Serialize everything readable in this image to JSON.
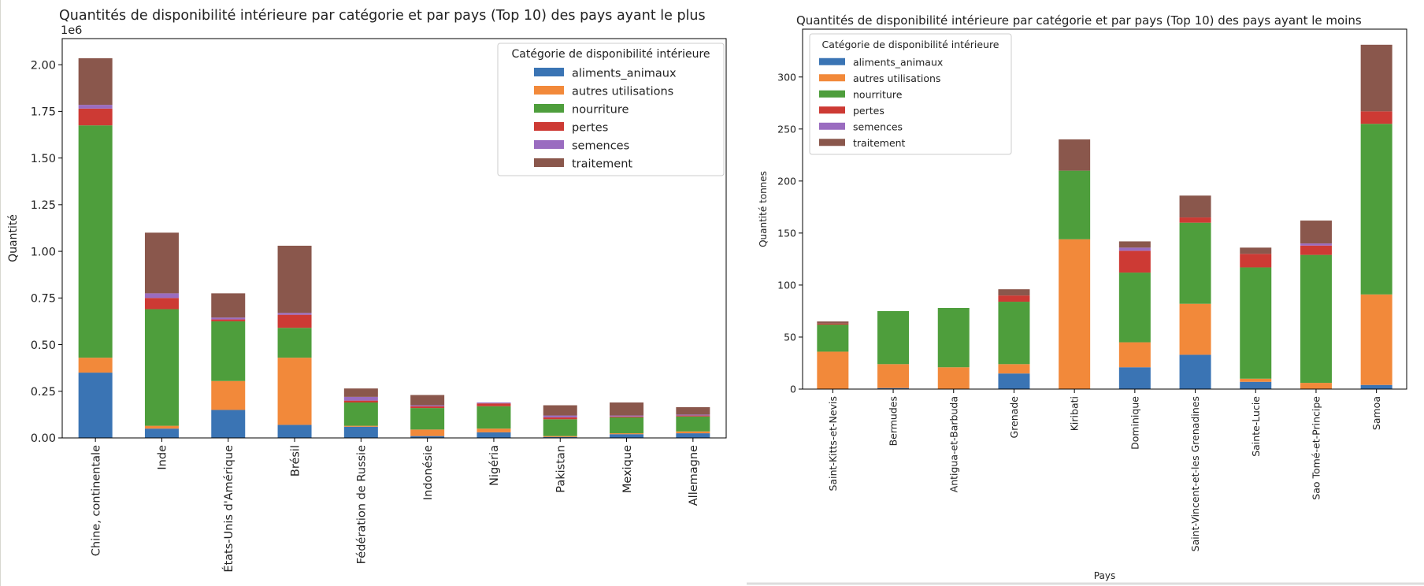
{
  "chart_data": [
    {
      "type": "bar",
      "stacked": true,
      "title": "Quantités de disponibilité intérieure par catégorie et par pays (Top 10) des pays ayant le plus",
      "xlabel": "",
      "ylabel": "Quantité",
      "y_offset_label": "1e6",
      "ylim": [
        0,
        2.14
      ],
      "y_ticks": [
        0.0,
        0.25,
        0.5,
        0.75,
        1.0,
        1.25,
        1.5,
        1.75,
        2.0
      ],
      "y_tick_labels": [
        "0.00",
        "0.25",
        "0.50",
        "0.75",
        "1.00",
        "1.25",
        "1.50",
        "1.75",
        "2.00"
      ],
      "grid": false,
      "legend": {
        "title": "Catégorie de disponibilité intérieure",
        "placement": "upper-right"
      },
      "categories": [
        "Chine, continentale",
        "Inde",
        "États-Unis d'Amérique",
        "Brésil",
        "Fédération de Russie",
        "Indonésie",
        "Nigéria",
        "Pakistan",
        "Mexique",
        "Allemagne"
      ],
      "series": [
        {
          "name": "aliments_animaux",
          "color": "#3a74b4",
          "values": [
            0.35,
            0.05,
            0.15,
            0.07,
            0.06,
            0.01,
            0.03,
            0.005,
            0.02,
            0.025
          ]
        },
        {
          "name": "autres utilisations",
          "color": "#f2893a",
          "values": [
            0.08,
            0.015,
            0.155,
            0.36,
            0.005,
            0.035,
            0.02,
            0.005,
            0.005,
            0.01
          ]
        },
        {
          "name": "nourriture",
          "color": "#4e9e3c",
          "values": [
            1.245,
            0.625,
            0.32,
            0.16,
            0.125,
            0.115,
            0.12,
            0.09,
            0.085,
            0.08
          ]
        },
        {
          "name": "pertes",
          "color": "#cd3a34",
          "values": [
            0.09,
            0.06,
            0.01,
            0.07,
            0.01,
            0.01,
            0.015,
            0.01,
            0.005,
            0.005
          ]
        },
        {
          "name": "semences",
          "color": "#9a6cc0",
          "values": [
            0.02,
            0.025,
            0.01,
            0.01,
            0.02,
            0.005,
            0.005,
            0.01,
            0.005,
            0.005
          ]
        },
        {
          "name": "traitement",
          "color": "#8a574c",
          "values": [
            0.25,
            0.325,
            0.13,
            0.36,
            0.045,
            0.055,
            0.0,
            0.055,
            0.07,
            0.04
          ]
        }
      ]
    },
    {
      "type": "bar",
      "stacked": true,
      "title": "Quantités de disponibilité intérieure par catégorie et par pays (Top 10) des pays ayant le moins",
      "xlabel": "Pays",
      "ylabel": "Quantité tonnes",
      "ylim": [
        0,
        346
      ],
      "y_ticks": [
        0,
        50,
        100,
        150,
        200,
        250,
        300
      ],
      "y_tick_labels": [
        "0",
        "50",
        "100",
        "150",
        "200",
        "250",
        "300"
      ],
      "grid": false,
      "legend": {
        "title": "Catégorie de disponibilité intérieure",
        "placement": "upper-left"
      },
      "categories": [
        "Saint-Kitts-et-Nevis",
        "Bermudes",
        "Antigua-et-Barbuda",
        "Grenade",
        "Kiribati",
        "Dominique",
        "Saint-Vincent-et-les Grenadines",
        "Sainte-Lucie",
        "Sao Tomé-et-Principe",
        "Samoa"
      ],
      "series": [
        {
          "name": "aliments_animaux",
          "color": "#3a74b4",
          "values": [
            0,
            1,
            0,
            15,
            0,
            21,
            33,
            7,
            0,
            4
          ]
        },
        {
          "name": "autres utilisations",
          "color": "#f2893a",
          "values": [
            36,
            23,
            21,
            9,
            144,
            24,
            49,
            3,
            6,
            87
          ]
        },
        {
          "name": "nourriture",
          "color": "#4e9e3c",
          "values": [
            26,
            51,
            57,
            60,
            66,
            67,
            78,
            107,
            123,
            164
          ]
        },
        {
          "name": "pertes",
          "color": "#cd3a34",
          "values": [
            1,
            0,
            0,
            6,
            0,
            21,
            5,
            13,
            9,
            12
          ]
        },
        {
          "name": "semences",
          "color": "#9a6cc0",
          "values": [
            0,
            0,
            0,
            0,
            0,
            3,
            0,
            0,
            2,
            0
          ]
        },
        {
          "name": "traitement",
          "color": "#8a574c",
          "values": [
            2,
            0,
            0,
            6,
            30,
            6,
            21,
            6,
            22,
            64
          ]
        }
      ]
    }
  ]
}
